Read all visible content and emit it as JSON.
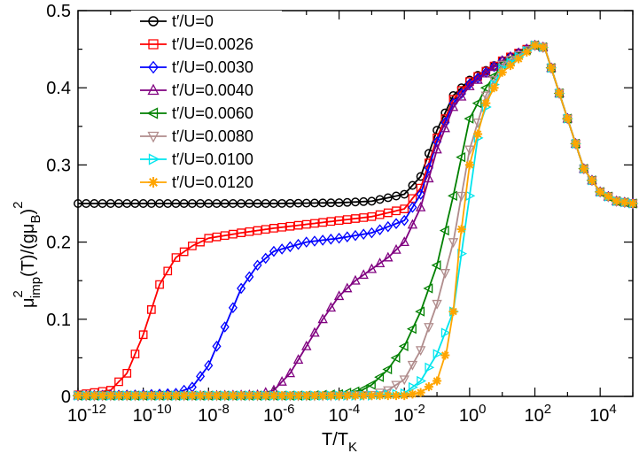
{
  "chart_data": {
    "type": "line",
    "x_scale": "log",
    "xlim_exp": [
      -12,
      5
    ],
    "ylim": [
      0,
      0.5
    ],
    "x_ticks": [
      {
        "exp": -12,
        "base": "10",
        "power": "-12"
      },
      {
        "exp": -10,
        "base": "10",
        "power": "-10"
      },
      {
        "exp": -8,
        "base": "10",
        "power": "-8"
      },
      {
        "exp": -6,
        "base": "10",
        "power": "-6"
      },
      {
        "exp": -4,
        "base": "10",
        "power": "-4"
      },
      {
        "exp": -2,
        "base": "10",
        "power": "-2"
      },
      {
        "exp": 0,
        "base": "10",
        "power": "0"
      },
      {
        "exp": 2,
        "base": "10",
        "power": "2"
      },
      {
        "exp": 4,
        "base": "10",
        "power": "4"
      }
    ],
    "y_ticks": [
      {
        "value": 0,
        "label": "0"
      },
      {
        "value": 0.1,
        "label": "0.1"
      },
      {
        "value": 0.2,
        "label": "0.2"
      },
      {
        "value": 0.3,
        "label": "0.3"
      },
      {
        "value": 0.4,
        "label": "0.4"
      },
      {
        "value": 0.5,
        "label": "0.5"
      }
    ],
    "xlabel": {
      "main": "T/T",
      "sub": "K"
    },
    "ylabel": {
      "mu": "μ",
      "sup": "2",
      "sub": "imp",
      "mid": "(T)/(gμ",
      "subB": "B",
      "close": ")",
      "sup2": "2"
    },
    "legend_location": "top-left",
    "series": [
      {
        "name": "t′/U=0",
        "color": "#000000",
        "marker": "circle",
        "points": [
          [
            -12,
            0.25
          ],
          [
            -10,
            0.25
          ],
          [
            -8,
            0.25
          ],
          [
            -6,
            0.25
          ],
          [
            -4,
            0.251
          ],
          [
            -3,
            0.253
          ],
          [
            -2,
            0.262
          ],
          [
            -1.5,
            0.285
          ],
          [
            -1,
            0.345
          ],
          [
            -0.5,
            0.39
          ],
          [
            0,
            0.41
          ],
          [
            1,
            0.435
          ],
          [
            2,
            0.455
          ],
          [
            2.3,
            0.452
          ],
          [
            3,
            0.36
          ],
          [
            3.5,
            0.295
          ],
          [
            4,
            0.265
          ],
          [
            4.5,
            0.253
          ],
          [
            5,
            0.25
          ]
        ]
      },
      {
        "name": "t′/U=0.0026",
        "color": "#ff0000",
        "marker": "square",
        "points": [
          [
            -12,
            0.002
          ],
          [
            -11,
            0.008
          ],
          [
            -10.5,
            0.03
          ],
          [
            -10,
            0.08
          ],
          [
            -9.5,
            0.145
          ],
          [
            -9,
            0.18
          ],
          [
            -8.5,
            0.195
          ],
          [
            -8,
            0.205
          ],
          [
            -7,
            0.212
          ],
          [
            -6,
            0.218
          ],
          [
            -5,
            0.223
          ],
          [
            -4,
            0.228
          ],
          [
            -3,
            0.233
          ],
          [
            -2,
            0.243
          ],
          [
            -1.5,
            0.27
          ],
          [
            -1,
            0.335
          ],
          [
            -0.5,
            0.385
          ],
          [
            0,
            0.408
          ],
          [
            1,
            0.435
          ],
          [
            2,
            0.455
          ],
          [
            2.3,
            0.452
          ],
          [
            3,
            0.36
          ],
          [
            3.5,
            0.295
          ],
          [
            4,
            0.265
          ],
          [
            4.5,
            0.253
          ],
          [
            5,
            0.25
          ]
        ]
      },
      {
        "name": "t′/U=0.0030",
        "color": "#0000ff",
        "marker": "diamond",
        "points": [
          [
            -12,
            0.001
          ],
          [
            -10,
            0.002
          ],
          [
            -9,
            0.004
          ],
          [
            -8.5,
            0.012
          ],
          [
            -8,
            0.04
          ],
          [
            -7.5,
            0.09
          ],
          [
            -7,
            0.14
          ],
          [
            -6.5,
            0.17
          ],
          [
            -6,
            0.188
          ],
          [
            -5,
            0.2
          ],
          [
            -4,
            0.205
          ],
          [
            -3,
            0.212
          ],
          [
            -2,
            0.228
          ],
          [
            -1.5,
            0.262
          ],
          [
            -1,
            0.33
          ],
          [
            -0.5,
            0.38
          ],
          [
            0,
            0.405
          ],
          [
            1,
            0.435
          ],
          [
            2,
            0.455
          ],
          [
            2.3,
            0.452
          ],
          [
            3,
            0.36
          ],
          [
            3.5,
            0.295
          ],
          [
            4,
            0.265
          ],
          [
            4.5,
            0.253
          ],
          [
            5,
            0.25
          ]
        ]
      },
      {
        "name": "t′/U=0.0040",
        "color": "#800080",
        "marker": "triangle-up",
        "points": [
          [
            -12,
            0.001
          ],
          [
            -8,
            0.001
          ],
          [
            -6.5,
            0.002
          ],
          [
            -6,
            0.008
          ],
          [
            -5.5,
            0.03
          ],
          [
            -5,
            0.065
          ],
          [
            -4.5,
            0.1
          ],
          [
            -4,
            0.13
          ],
          [
            -3.5,
            0.15
          ],
          [
            -3,
            0.165
          ],
          [
            -2.5,
            0.18
          ],
          [
            -2,
            0.2
          ],
          [
            -1.5,
            0.245
          ],
          [
            -1,
            0.32
          ],
          [
            -0.5,
            0.375
          ],
          [
            0,
            0.402
          ],
          [
            1,
            0.435
          ],
          [
            2,
            0.455
          ],
          [
            2.3,
            0.452
          ],
          [
            3,
            0.36
          ],
          [
            3.5,
            0.295
          ],
          [
            4,
            0.265
          ],
          [
            4.5,
            0.253
          ],
          [
            5,
            0.25
          ]
        ]
      },
      {
        "name": "t′/U=0.0060",
        "color": "#008000",
        "marker": "triangle-left",
        "points": [
          [
            -12,
            0.001
          ],
          [
            -5,
            0.001
          ],
          [
            -4,
            0.003
          ],
          [
            -3.3,
            0.008
          ],
          [
            -3,
            0.015
          ],
          [
            -2.5,
            0.035
          ],
          [
            -2,
            0.065
          ],
          [
            -1.5,
            0.11
          ],
          [
            -1,
            0.17
          ],
          [
            -0.5,
            0.26
          ],
          [
            0,
            0.36
          ],
          [
            0.5,
            0.4
          ],
          [
            1,
            0.43
          ],
          [
            2,
            0.455
          ],
          [
            2.3,
            0.452
          ],
          [
            3,
            0.36
          ],
          [
            3.5,
            0.295
          ],
          [
            4,
            0.265
          ],
          [
            4.5,
            0.253
          ],
          [
            5,
            0.25
          ]
        ]
      },
      {
        "name": "t′/U=0.0080",
        "color": "#b08c8c",
        "marker": "triangle-down",
        "points": [
          [
            -12,
            0.001
          ],
          [
            -4,
            0.001
          ],
          [
            -3,
            0.002
          ],
          [
            -2.5,
            0.008
          ],
          [
            -2,
            0.022
          ],
          [
            -1.5,
            0.06
          ],
          [
            -1,
            0.12
          ],
          [
            -0.5,
            0.2
          ],
          [
            0,
            0.32
          ],
          [
            0.5,
            0.39
          ],
          [
            1,
            0.43
          ],
          [
            2,
            0.455
          ],
          [
            2.3,
            0.452
          ],
          [
            3,
            0.36
          ],
          [
            3.5,
            0.295
          ],
          [
            4,
            0.265
          ],
          [
            4.5,
            0.253
          ],
          [
            5,
            0.25
          ]
        ]
      },
      {
        "name": "t′/U=0.0100",
        "color": "#00e5ee",
        "marker": "triangle-right",
        "points": [
          [
            -12,
            0.001
          ],
          [
            -3,
            0.001
          ],
          [
            -2,
            0.004
          ],
          [
            -1.5,
            0.02
          ],
          [
            -1,
            0.055
          ],
          [
            -0.5,
            0.11
          ],
          [
            0,
            0.26
          ],
          [
            0.3,
            0.35
          ],
          [
            0.7,
            0.4
          ],
          [
            1,
            0.425
          ],
          [
            2,
            0.455
          ],
          [
            2.3,
            0.452
          ],
          [
            3,
            0.36
          ],
          [
            3.5,
            0.295
          ],
          [
            4,
            0.265
          ],
          [
            4.5,
            0.253
          ],
          [
            5,
            0.25
          ]
        ]
      },
      {
        "name": "t′/U=0.0120",
        "color": "#ffa500",
        "marker": "star",
        "points": [
          [
            -12,
            0.001
          ],
          [
            -2,
            0.001
          ],
          [
            -1.5,
            0.005
          ],
          [
            -1,
            0.02
          ],
          [
            -0.7,
            0.06
          ],
          [
            -0.5,
            0.11
          ],
          [
            -0.3,
            0.2
          ],
          [
            0,
            0.3
          ],
          [
            0.5,
            0.38
          ],
          [
            1,
            0.42
          ],
          [
            2,
            0.455
          ],
          [
            2.3,
            0.452
          ],
          [
            3,
            0.36
          ],
          [
            3.5,
            0.295
          ],
          [
            4,
            0.265
          ],
          [
            4.5,
            0.253
          ],
          [
            5,
            0.25
          ]
        ]
      }
    ]
  }
}
